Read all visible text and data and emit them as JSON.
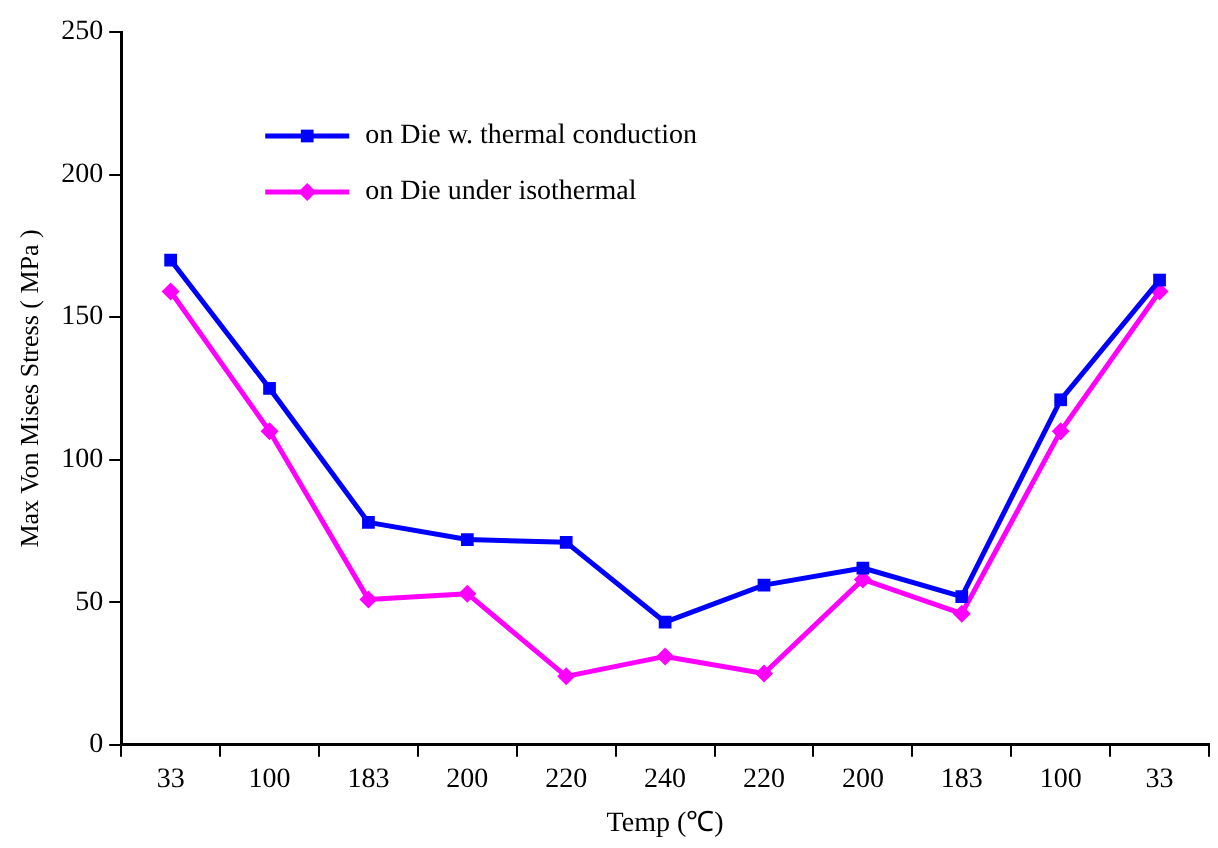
{
  "chart_data": {
    "type": "line",
    "xlabel": "Temp (℃)",
    "ylabel": "Max Von Mises Stress ( MPa )",
    "categories": [
      "33",
      "100",
      "183",
      "200",
      "220",
      "240",
      "220",
      "200",
      "183",
      "100",
      "33"
    ],
    "ylim": [
      0,
      250
    ],
    "yticks": [
      0,
      50,
      100,
      150,
      200,
      250
    ],
    "grid": false,
    "legend": "top left",
    "line_style": "solid",
    "series": [
      {
        "name": "on Die w. thermal conduction",
        "color": "#0000ff",
        "marker": "square",
        "values": [
          170,
          125,
          78,
          72,
          71,
          43,
          56,
          62,
          52,
          121,
          163
        ]
      },
      {
        "name": "on Die under isothermal",
        "color": "#ff00ff",
        "marker": "diamond",
        "values": [
          159,
          110,
          51,
          53,
          24,
          31,
          25,
          58,
          46,
          110,
          159
        ]
      }
    ]
  }
}
